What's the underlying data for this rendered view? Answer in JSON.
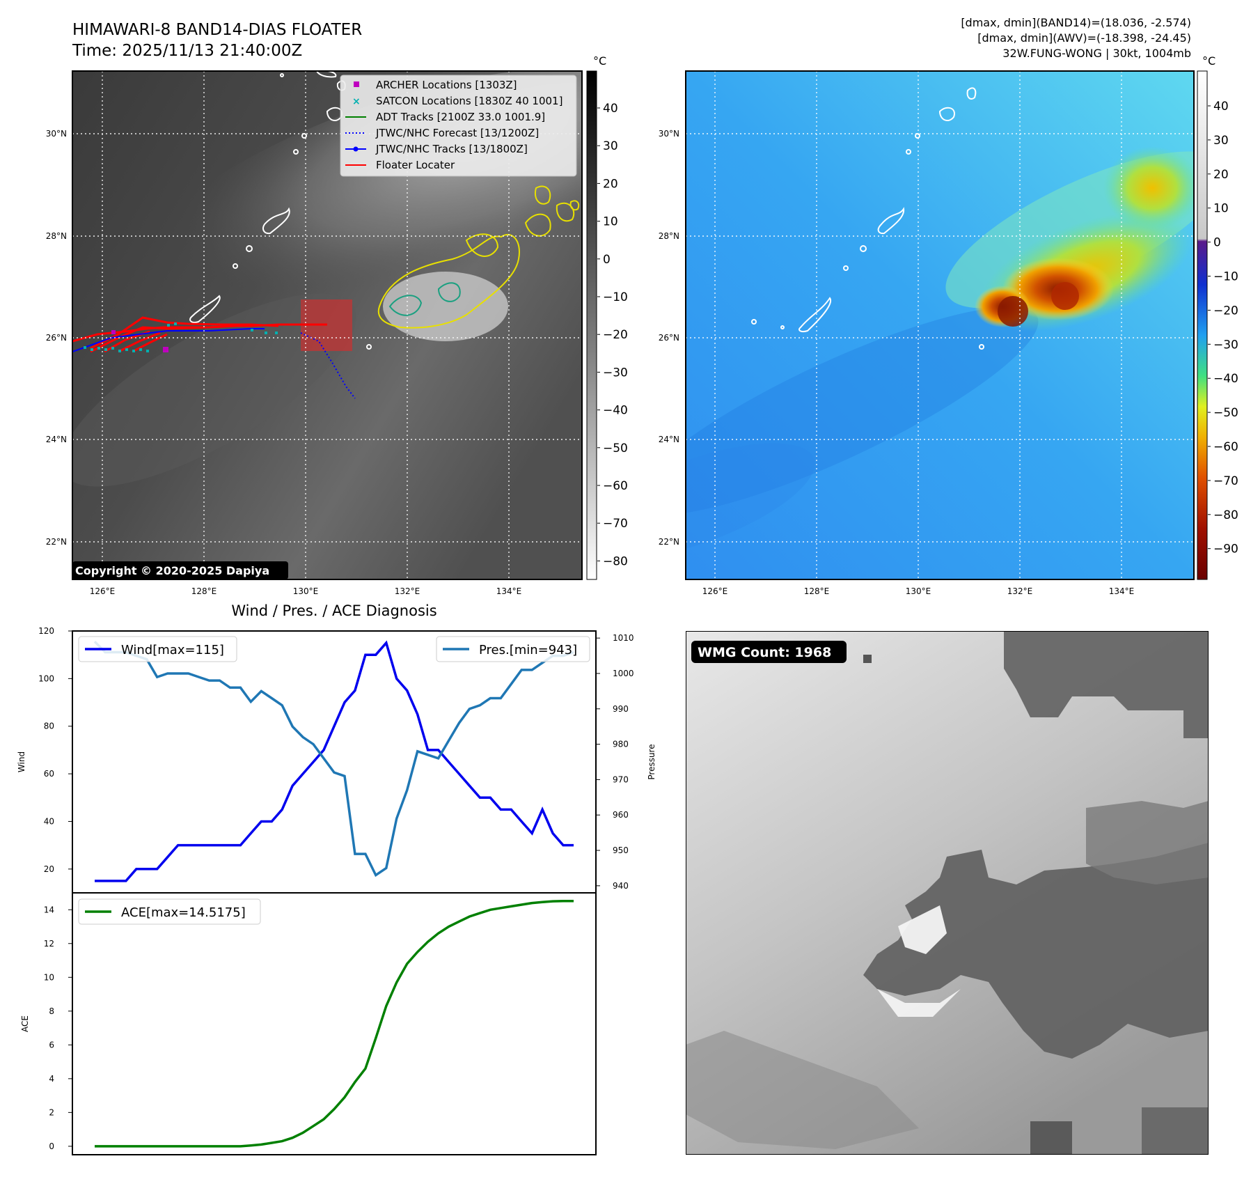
{
  "header": {
    "title_line1": "HIMAWARI-8 BAND14-DIAS FLOATER",
    "title_line2": "Time: 2025/11/13 21:40:00Z",
    "info_line1": "[dmax, dmin](BAND14)=(18.036, -2.574)",
    "info_line2": "[dmax, dmin](AWV)=(-18.398, -24.45)",
    "info_line3": "32W.FUNG-WONG | 30kt, 1004mb"
  },
  "copyright": "Copyright © 2020-2025 Dapiya",
  "map": {
    "lat_labels": [
      "30°N",
      "28°N",
      "26°N",
      "24°N",
      "22°N"
    ],
    "lon_labels": [
      "126°E",
      "128°E",
      "130°E",
      "132°E",
      "134°E"
    ],
    "unit": "°C"
  },
  "colorbar_gray": {
    "ticks": [
      "40",
      "30",
      "20",
      "10",
      "0",
      "−10",
      "−20",
      "−30",
      "−40",
      "−50",
      "−60",
      "−70",
      "−80"
    ]
  },
  "colorbar_color": {
    "ticks": [
      "40",
      "30",
      "20",
      "10",
      "0",
      "−10",
      "−20",
      "−30",
      "−40",
      "−50",
      "−60",
      "−70",
      "−80",
      "−90"
    ]
  },
  "legend_map": [
    {
      "label": "ARCHER Locations [1303Z]",
      "color": "#bf00bf",
      "marker": "square"
    },
    {
      "label": "SATCON Locations [1830Z 40 1001]",
      "color": "#00b0b0",
      "marker": "x"
    },
    {
      "label": "ADT Tracks [2100Z 33.0 1001.9]",
      "color": "#008000",
      "marker": "line"
    },
    {
      "label": "JTWC/NHC Forecast [13/1200Z]",
      "color": "#0000ff",
      "marker": "dotted"
    },
    {
      "label": "JTWC/NHC Tracks [13/1800Z]",
      "color": "#0000ff",
      "marker": "line-dot"
    },
    {
      "label": "Floater Locater",
      "color": "#ff0000",
      "marker": "line"
    }
  ],
  "wmg": {
    "label": "WMG Count: 1968"
  },
  "chart_data": [
    {
      "type": "line",
      "title": "Wind / Pres. / ACE Diagnosis",
      "xlabel": "",
      "ylabel": "Wind",
      "ylabel_right": "Pressure",
      "ylim": [
        10,
        120
      ],
      "ylim_right": [
        938,
        1012
      ],
      "yticks": [
        20,
        40,
        60,
        80,
        100,
        120
      ],
      "yticks_right": [
        940,
        950,
        960,
        970,
        980,
        990,
        1000,
        1010
      ],
      "series": [
        {
          "name": "Wind[max=115]",
          "axis": "left",
          "color": "#0000ee",
          "values": [
            15,
            15,
            15,
            15,
            20,
            20,
            20,
            25,
            30,
            30,
            30,
            30,
            30,
            30,
            30,
            35,
            40,
            40,
            45,
            55,
            60,
            65,
            70,
            80,
            90,
            95,
            110,
            110,
            115,
            100,
            95,
            85,
            70,
            70,
            65,
            60,
            55,
            50,
            50,
            45,
            45,
            40,
            35,
            45,
            35,
            30,
            30
          ]
        },
        {
          "name": "Pres.[min=943]",
          "axis": "right",
          "color": "#1f77b4",
          "values": [
            1009,
            1006,
            1006,
            1006,
            1005,
            1004,
            999,
            1000,
            1000,
            1000,
            999,
            998,
            998,
            996,
            996,
            992,
            995,
            993,
            991,
            985,
            982,
            980,
            976,
            972,
            971,
            949,
            949,
            943,
            945,
            959,
            967,
            978,
            977,
            976,
            981,
            986,
            990,
            991,
            993,
            993,
            997,
            1001,
            1001,
            1003,
            1005,
            1005,
            1006
          ]
        }
      ],
      "legend": [
        "Wind[max=115]",
        "Pres.[min=943]"
      ]
    },
    {
      "type": "line",
      "title": "",
      "xlabel": "",
      "ylabel": "ACE",
      "ylim": [
        -0.5,
        15
      ],
      "yticks": [
        0,
        2,
        4,
        6,
        8,
        10,
        12,
        14
      ],
      "series": [
        {
          "name": "ACE[max=14.5175]",
          "color": "#008000",
          "values": [
            0,
            0,
            0,
            0,
            0,
            0,
            0,
            0,
            0,
            0,
            0,
            0,
            0,
            0,
            0,
            0.05,
            0.1,
            0.2,
            0.3,
            0.5,
            0.8,
            1.2,
            1.6,
            2.2,
            2.9,
            3.8,
            4.6,
            6.4,
            8.3,
            9.7,
            10.8,
            11.5,
            12.1,
            12.6,
            13.0,
            13.3,
            13.6,
            13.8,
            14.0,
            14.1,
            14.2,
            14.3,
            14.4,
            14.45,
            14.5,
            14.5175,
            14.5175
          ]
        }
      ],
      "legend": [
        "ACE[max=14.5175]"
      ]
    }
  ]
}
